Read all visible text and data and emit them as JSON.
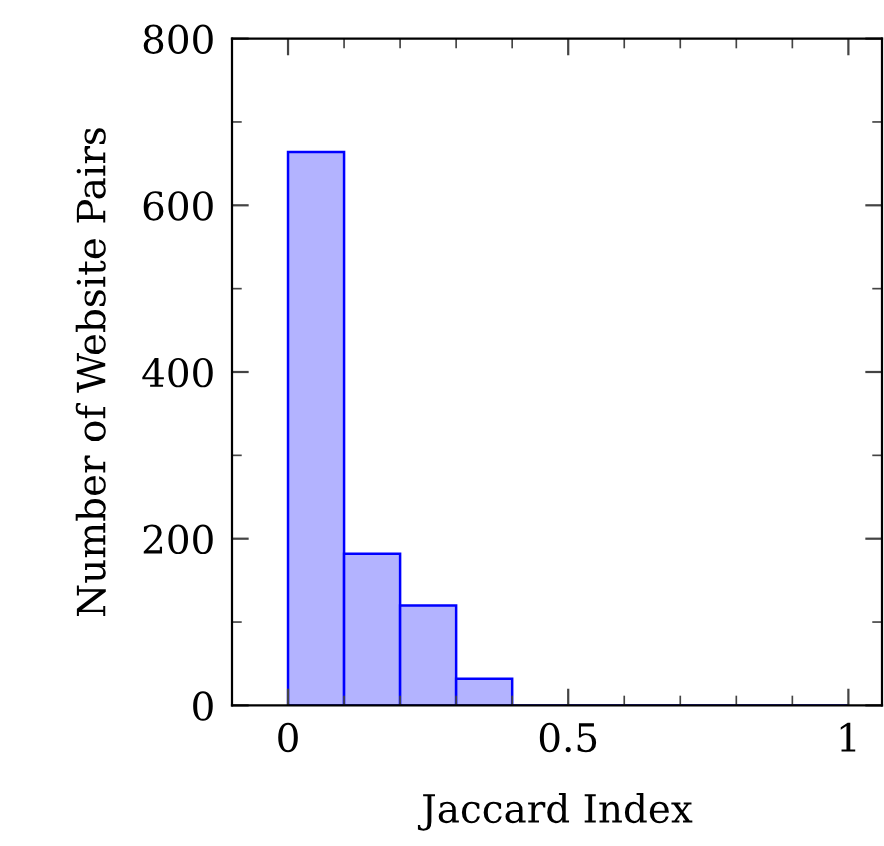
{
  "chart_data": {
    "type": "histogram",
    "xlabel": "Jaccard Index",
    "ylabel": "Number of Website Pairs",
    "bins": [
      0,
      0.1,
      0.2,
      0.3,
      0.4,
      0.5,
      0.6,
      0.7,
      0.8,
      0.9,
      1.0
    ],
    "values": [
      664,
      182,
      120,
      32,
      0,
      0,
      0,
      0,
      0,
      0
    ],
    "color": "#b3b3ff",
    "xlim": [
      -0.1,
      1.06
    ],
    "ylim": [
      0,
      800
    ],
    "xticks": [
      0,
      {
        "value": 0.1,
        "label": null
      },
      {
        "value": 0.2,
        "label": null
      },
      {
        "value": 0.3,
        "label": null
      },
      {
        "value": 0.4,
        "label": null
      },
      0.5,
      {
        "value": 0.6,
        "label": null
      },
      {
        "value": 0.7,
        "label": null
      },
      {
        "value": 0.8,
        "label": null
      },
      {
        "value": 0.9,
        "label": null
      },
      1
    ],
    "yticks": [
      0,
      {
        "value": 100,
        "label": null
      },
      200,
      {
        "value": 300,
        "label": null
      },
      400,
      {
        "value": 500,
        "label": null
      },
      600,
      {
        "value": 700,
        "label": null
      },
      800
    ],
    "grid": false,
    "legend": false
  }
}
